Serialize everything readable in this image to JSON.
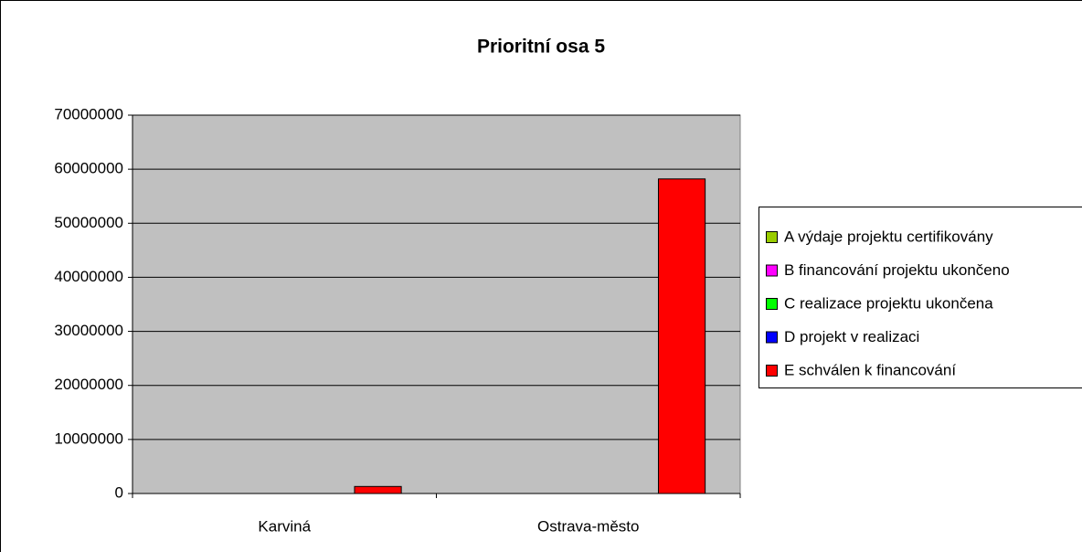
{
  "chart_data": {
    "type": "bar",
    "title": "Prioritní osa 5",
    "categories": [
      "Karviná",
      "Ostrava-město"
    ],
    "series": [
      {
        "name": "A výdaje projektu certifikovány",
        "color": "#99cc00",
        "values": [
          0,
          0
        ]
      },
      {
        "name": "B financování projektu ukončeno",
        "color": "#ff00ff",
        "values": [
          0,
          0
        ]
      },
      {
        "name": "C realizace projektu ukončena",
        "color": "#00ff00",
        "values": [
          0,
          0
        ]
      },
      {
        "name": "D projekt v realizaci",
        "color": "#0000ff",
        "values": [
          0,
          0
        ]
      },
      {
        "name": "E schválen k financování",
        "color": "#ff0000",
        "values": [
          1300000,
          58200000
        ]
      }
    ],
    "ylim": [
      0,
      70000000
    ],
    "yticks": [
      0,
      10000000,
      20000000,
      30000000,
      40000000,
      50000000,
      60000000,
      70000000
    ],
    "grid": true,
    "legend": "right"
  }
}
